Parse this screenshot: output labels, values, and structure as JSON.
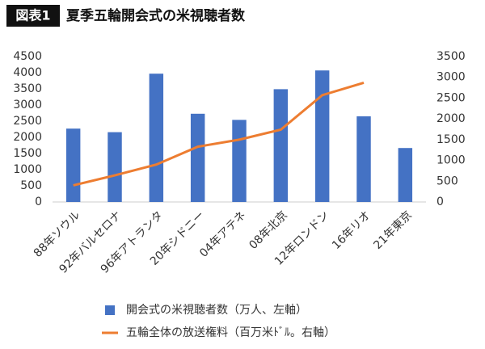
{
  "chart_data": {
    "type": "bar_line",
    "figure_label": "図表1",
    "title": "夏季五輪開会式の米視聴者数",
    "categories": [
      "88年ソウル",
      "92年バルセロナ",
      "96年アトランタ",
      "20年シドニー",
      "04年アテネ",
      "08年北京",
      "12年ロンドン",
      "16年リオ",
      "21年東京"
    ],
    "series": [
      {
        "name": "開会式の米視聴者数（万人、左軸）",
        "type": "bar",
        "color": "#4472c4",
        "values": [
          2270,
          2160,
          3970,
          2730,
          2540,
          3490,
          4070,
          2650,
          1670
        ]
      },
      {
        "name": "五輪全体の放送権料（百万米ﾄﾞﾙ。右軸）",
        "type": "line",
        "axis": "y2",
        "color": "#ed7d31",
        "values": [
          400,
          640,
          900,
          1330,
          1500,
          1740,
          2570,
          2870,
          null
        ]
      }
    ],
    "ylim": [
      0,
      4500
    ],
    "yticks": [
      0,
      500,
      1000,
      1500,
      2000,
      2500,
      3000,
      3500,
      4000,
      4500
    ],
    "y2lim": [
      0,
      3500
    ],
    "y2ticks": [
      0,
      500,
      1000,
      1500,
      2000,
      2500,
      3000,
      3500
    ]
  }
}
